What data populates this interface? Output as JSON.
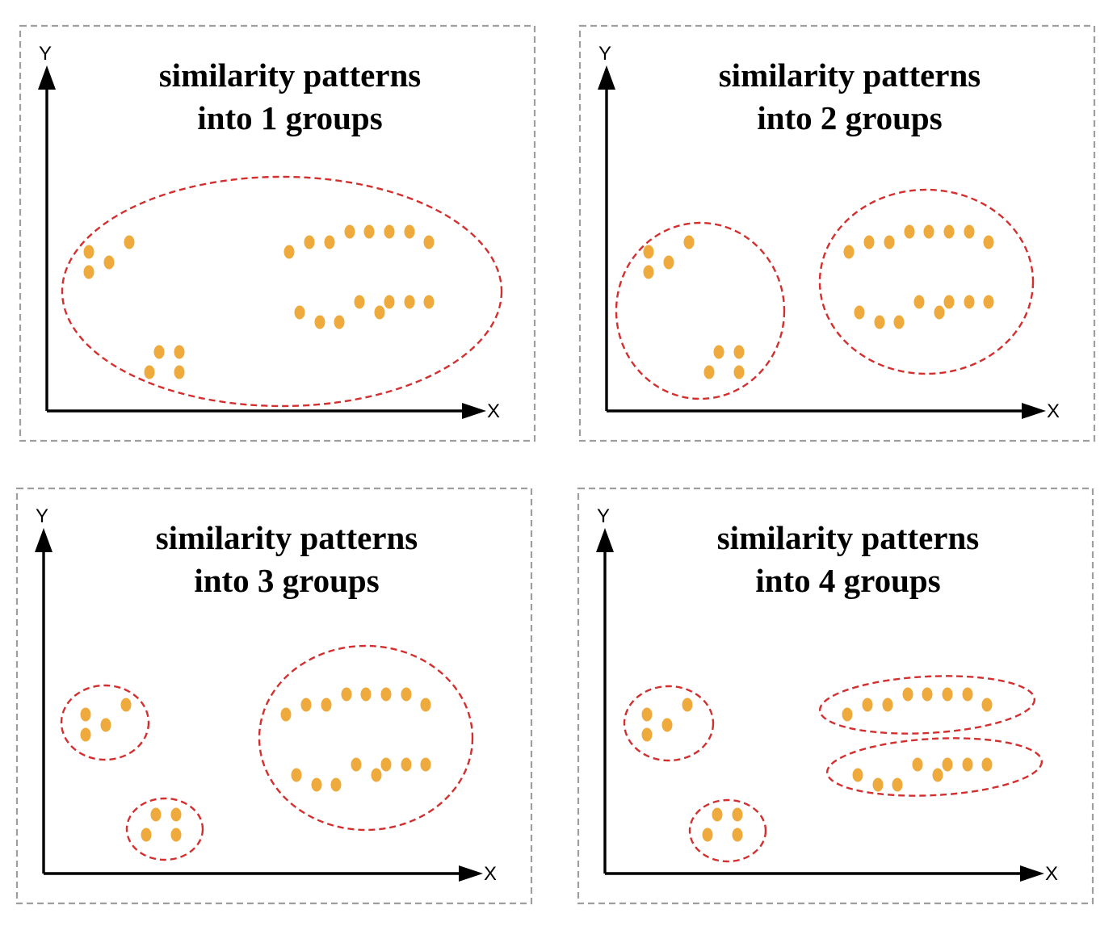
{
  "colors": {
    "border": "#9e9e9e",
    "cluster_outline": "#d32f2f",
    "point": "#eeaa3c",
    "axis": "#000000"
  },
  "axes": {
    "x_label": "X",
    "y_label": "Y"
  },
  "panels": [
    {
      "title_line1": "similarity patterns",
      "title_line2": "into 1 groups",
      "groups": 1
    },
    {
      "title_line1": "similarity patterns",
      "title_line2": "into 2 groups",
      "groups": 2
    },
    {
      "title_line1": "similarity patterns",
      "title_line2": "into 3 groups",
      "groups": 3
    },
    {
      "title_line1": "similarity patterns",
      "title_line2": "into 4 groups",
      "groups": 4
    }
  ]
}
